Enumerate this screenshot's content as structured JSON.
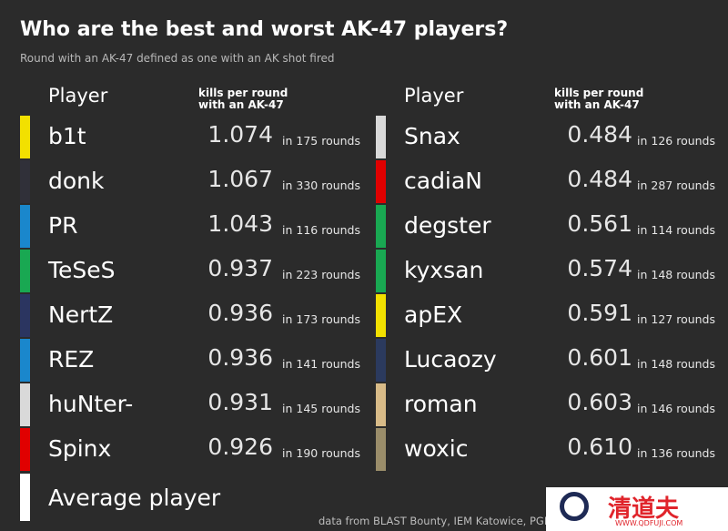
{
  "title": "Who are the best and worst AK-47 players?",
  "subtitle": "Round with an AK-47 defined as one with an AK shot fired",
  "tables": [
    {
      "header_player": "Player",
      "header_metric": [
        "kills per round",
        "with an AK-47"
      ],
      "rows": [
        {
          "player": "b1t",
          "color": "#f2e000",
          "kpr": "1.074",
          "rounds": "in 175 rounds"
        },
        {
          "player": "donk",
          "color": "#303039",
          "kpr": "1.067",
          "rounds": "in 330 rounds"
        },
        {
          "player": "PR",
          "color": "#1a87cc",
          "kpr": "1.043",
          "rounds": "in 116 rounds"
        },
        {
          "player": "TeSeS",
          "color": "#19a852",
          "kpr": "0.937",
          "rounds": "in 223 rounds"
        },
        {
          "player": "NertZ",
          "color": "#2b3560",
          "kpr": "0.936",
          "rounds": "in 173 rounds"
        },
        {
          "player": "REZ",
          "color": "#1a87cc",
          "kpr": "0.936",
          "rounds": "in 141 rounds"
        },
        {
          "player": "huNter-",
          "color": "#d9d9d9",
          "kpr": "0.931",
          "rounds": "in 145 rounds"
        },
        {
          "player": "Spinx",
          "color": "#e00000",
          "kpr": "0.926",
          "rounds": "in 190 rounds"
        }
      ]
    },
    {
      "header_player": "Player",
      "header_metric": [
        "kills per round",
        "with an AK-47"
      ],
      "rows": [
        {
          "player": "Snax",
          "color": "#d9d9d9",
          "kpr": "0.484",
          "rounds": "in 126 rounds"
        },
        {
          "player": "cadiaN",
          "color": "#e00000",
          "kpr": "0.484",
          "rounds": "in 287 rounds"
        },
        {
          "player": "degster",
          "color": "#19a852",
          "kpr": "0.561",
          "rounds": "in 114 rounds"
        },
        {
          "player": "kyxsan",
          "color": "#19a852",
          "kpr": "0.574",
          "rounds": "in 148 rounds"
        },
        {
          "player": "apEX",
          "color": "#f2e000",
          "kpr": "0.591",
          "rounds": "in 127 rounds"
        },
        {
          "player": "Lucaozy",
          "color": "#2b3a5e",
          "kpr": "0.601",
          "rounds": "in 148 rounds"
        },
        {
          "player": "roman",
          "color": "#d8bb88",
          "kpr": "0.603",
          "rounds": "in 146 rounds"
        },
        {
          "player": "woxic",
          "color": "#9a8d6a",
          "kpr": "0.610",
          "rounds": "in 136 rounds"
        }
      ]
    }
  ],
  "average": {
    "label": "Average player",
    "color": "#ffffff"
  },
  "source": "data from BLAST Bounty, IEM Katowice, PGL",
  "watermark": {
    "name": "清道夫",
    "url": "WWW.QDFUJI.COM"
  }
}
